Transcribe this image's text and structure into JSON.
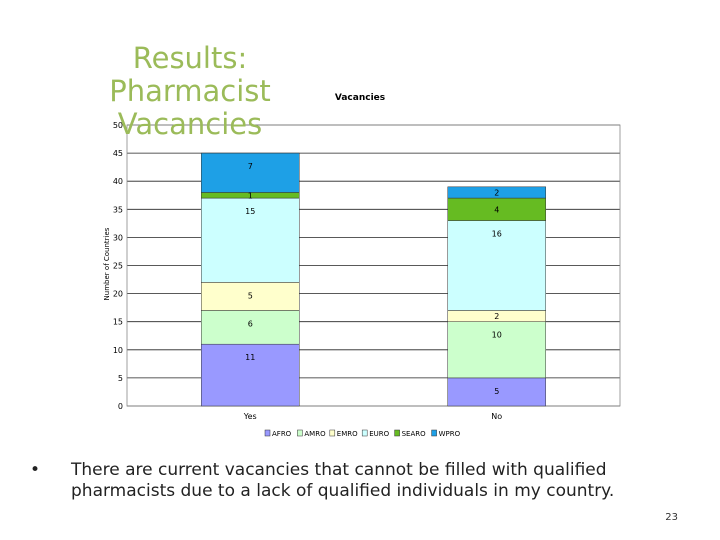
{
  "slide": {
    "title": "Results: Pharmacist Vacancies",
    "bullet": "There are current vacancies that cannot be filled with qualified pharmacists due to a lack of qualified individuals in my country.",
    "bullet_symbol": "•",
    "page_number": "23"
  },
  "chart_data": {
    "type": "bar",
    "stacked": true,
    "title": "Vacancies",
    "xlabel": "",
    "ylabel": "Number of Countries",
    "categories": [
      "Yes",
      "No"
    ],
    "ylim": [
      0,
      50
    ],
    "yticks": [
      0,
      5,
      10,
      15,
      20,
      25,
      30,
      35,
      40,
      45,
      50
    ],
    "grid": "horizontal",
    "legend": "bottom",
    "series": [
      {
        "name": "AFRO",
        "values": [
          11,
          5
        ],
        "labels": [
          "11",
          "5"
        ],
        "color": "#9999ff"
      },
      {
        "name": "AMRO",
        "values": [
          6,
          10
        ],
        "labels": [
          "6",
          "10"
        ],
        "color": "#ccffcc"
      },
      {
        "name": "EMRO",
        "values": [
          5,
          2
        ],
        "labels": [
          "5",
          "2"
        ],
        "color": "#ffffcc"
      },
      {
        "name": "EURO",
        "values": [
          15,
          16
        ],
        "labels": [
          "15",
          "16"
        ],
        "color": "#ccffff"
      },
      {
        "name": "SEARO",
        "values": [
          1,
          4
        ],
        "labels": [
          "1",
          "4"
        ],
        "color": "#66bb22"
      },
      {
        "name": "WPRO",
        "values": [
          7,
          2
        ],
        "labels": [
          "7",
          "2"
        ],
        "color": "#1ea0e6"
      }
    ]
  }
}
